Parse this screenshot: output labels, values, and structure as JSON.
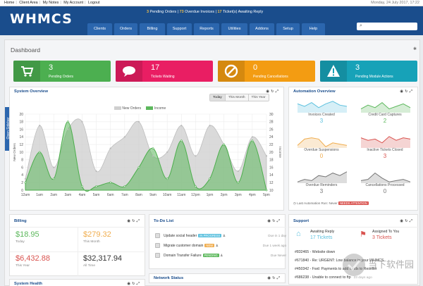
{
  "topbar": {
    "links": [
      "Home",
      "Client Area",
      "My Notes",
      "My Account",
      "Logout"
    ],
    "date": "Monday, 24 July 2017, 17:22"
  },
  "header": {
    "logo": "WHMCS",
    "alerts": {
      "pending_orders_count": "3",
      "pending_orders_label": "Pending Orders",
      "overdue_count": "73",
      "overdue_label": "Overdue Invoices",
      "tickets_count": "17",
      "tickets_label": "Ticket(s) Awaiting Reply"
    },
    "nav": [
      "Clients",
      "Orders",
      "Billing",
      "Support",
      "Reports",
      "Utilities",
      "Addons",
      "Setup",
      "Help"
    ]
  },
  "dashboard": {
    "title": "Dashboard",
    "sidebar_tab": "Open Sidebar",
    "stats": [
      {
        "value": "3",
        "label": "Pending Orders",
        "color": "#4caf50",
        "icon": "cart-icon"
      },
      {
        "value": "17",
        "label": "Tickets Waiting",
        "color": "#e91e63",
        "icon": "chat-icon"
      },
      {
        "value": "0",
        "label": "Pending Cancellations",
        "color": "#f39c12",
        "icon": "no-entry-icon"
      },
      {
        "value": "3",
        "label": "Pending Module Actions",
        "color": "#17a2b8",
        "icon": "warning-icon"
      }
    ]
  },
  "system_overview": {
    "title": "System Overview",
    "toggle": [
      "Today",
      "This Month",
      "This Year"
    ],
    "legend": [
      "New Orders",
      "Income"
    ]
  },
  "chart_data": {
    "type": "area",
    "x": [
      "12am",
      "1am",
      "2am",
      "3am",
      "4am",
      "5am",
      "6am",
      "7am",
      "8am",
      "9am",
      "10am",
      "11am",
      "12pm",
      "1pm",
      "2pm",
      "3pm",
      "4pm",
      "5pm"
    ],
    "ylabel_left": "New Orders",
    "ylabel_right": "Income",
    "left_ticks": [
      "0",
      "2",
      "4",
      "6",
      "8",
      "10",
      "12",
      "14",
      "16",
      "18",
      "20"
    ],
    "right_ticks": [
      "10",
      "12",
      "14",
      "16",
      "18",
      "20",
      "22",
      "24",
      "26",
      "28",
      "30"
    ],
    "ylim_left": [
      0,
      20
    ],
    "ylim_right": [
      10,
      30
    ],
    "series": [
      {
        "name": "New Orders",
        "color": "#cfcfcf",
        "values": [
          3,
          17,
          6,
          16,
          18,
          5,
          11,
          14,
          18,
          9,
          10,
          17,
          9,
          17,
          12,
          5,
          14,
          9
        ]
      },
      {
        "name": "Income",
        "color": "#5cb85c",
        "values": [
          12,
          20,
          13,
          28,
          11,
          11,
          12,
          11,
          16,
          21,
          13,
          23,
          11,
          13,
          22,
          12,
          23,
          10
        ]
      }
    ],
    "grid": true
  },
  "automation": {
    "title": "Automation Overview",
    "items": [
      {
        "label": "Invoices Created",
        "value": "3",
        "color": "#5bc0de"
      },
      {
        "label": "Credit Card Captures",
        "value": "2",
        "color": "#5cb85c"
      },
      {
        "label": "Overdue Suspensions",
        "value": "0",
        "color": "#f0ad4e"
      },
      {
        "label": "Inactive Tickets Closed",
        "value": "3",
        "color": "#d9534f"
      },
      {
        "label": "Overdue Reminders",
        "value": "3",
        "color": "#777777"
      },
      {
        "label": "Cancellations Processed",
        "value": "0",
        "color": "#777777"
      }
    ],
    "last_run_label": "Last Automation Run: Never",
    "last_run_badge": "NEEDS ATTENTION"
  },
  "billing": {
    "title": "Billing",
    "cells": [
      {
        "value": "$18.95",
        "label": "Today",
        "color": "#5cb85c"
      },
      {
        "value": "$279.32",
        "label": "This Month",
        "color": "#f0ad4e"
      },
      {
        "value": "$6,432.88",
        "label": "This Year",
        "color": "#d9534f"
      },
      {
        "value": "$32,317.94",
        "label": "All Time",
        "color": "#333333"
      }
    ]
  },
  "todo": {
    "title": "To-Do List",
    "rows": [
      {
        "text": "Update social header",
        "badge": "IN PROGRESS",
        "badge_color": "#5bc0de",
        "due": "Due in 1 day"
      },
      {
        "text": "Migrate customer domain",
        "badge": "NEW",
        "badge_color": "#f0ad4e",
        "due": "Due 1 week ago"
      },
      {
        "text": "Domain Transfer Failure",
        "badge": "PENDING",
        "badge_color": "#5cb85c",
        "due": "Due Never"
      }
    ]
  },
  "support": {
    "title": "Support",
    "awaiting_label": "Awaiting Reply",
    "awaiting_value": "17 Tickets",
    "assigned_label": "Assigned To You",
    "assigned_value": "3 Tickets",
    "tickets": [
      {
        "text": "#832465 - Website down",
        "age": ""
      },
      {
        "text": "#671840 - Re: URGENT: Low balance in your WHMCS",
        "age": ""
      },
      {
        "text": "#450342 - Fwd: Payments to add funds to Reseller",
        "age": ""
      },
      {
        "text": "#686238 - Unable to connect to ftp",
        "age": "23 days ago"
      }
    ]
  },
  "system_health": {
    "title": "System Health"
  },
  "network_status": {
    "title": "Network Status"
  },
  "watermark": "当下软件园"
}
